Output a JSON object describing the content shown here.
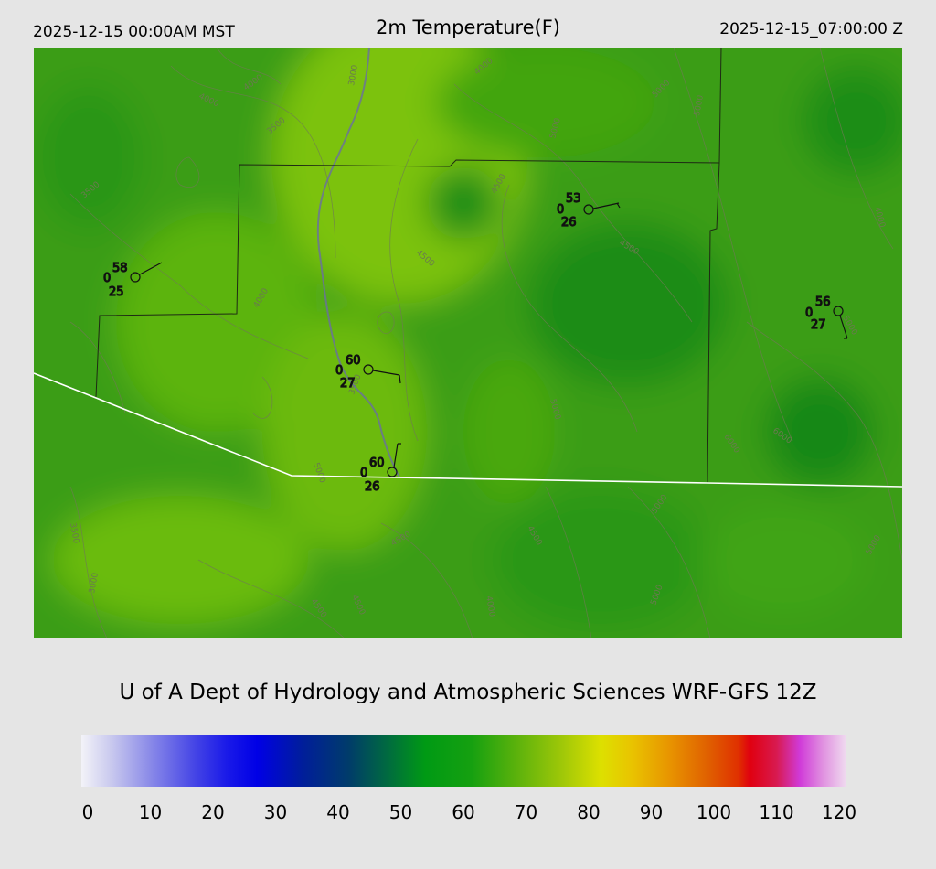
{
  "header": {
    "local_time": "2025-12-15 00:00AM MST",
    "title": "2m Temperature(F)",
    "utc_time": "2025-12-15_07:00:00 Z"
  },
  "credit": "U of A Dept of Hydrology and Atmospheric Sciences WRF-GFS 12Z",
  "colorbar": {
    "ticks": [
      "0",
      "10",
      "20",
      "30",
      "40",
      "50",
      "60",
      "70",
      "80",
      "90",
      "100",
      "110",
      "120"
    ],
    "colors": [
      "#f3f3f8",
      "#0000e6",
      "#009a14",
      "#dde000",
      "#e00010",
      "#efd8ef"
    ]
  },
  "stations": [
    {
      "temp": "58",
      "wind": "0",
      "dew": "25"
    },
    {
      "temp": "53",
      "wind": "0",
      "dew": "26"
    },
    {
      "temp": "56",
      "wind": "0",
      "dew": "27"
    },
    {
      "temp": "60",
      "wind": "0",
      "dew": "27"
    },
    {
      "temp": "60",
      "wind": "0",
      "dew": "26"
    }
  ],
  "contour_labels": [
    "4000",
    "4000",
    "3000",
    "3500",
    "3500",
    "4000",
    "4500",
    "4000",
    "3500",
    "4500",
    "5000",
    "5000",
    "5000",
    "4500",
    "4000",
    "5000",
    "6000",
    "6000",
    "5000",
    "4500",
    "4500",
    "5000",
    "3000",
    "3500",
    "4500",
    "4500",
    "4000",
    "5000",
    "5000",
    "5000"
  ]
}
